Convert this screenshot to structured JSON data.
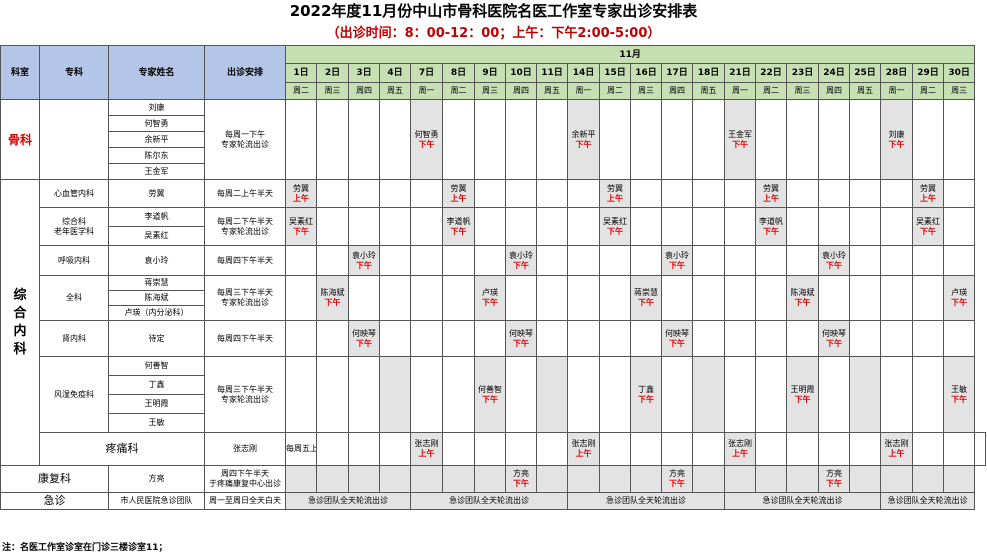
{
  "title": "2022年度11月份中山市骨科医院名医工作室专家出诊安排表",
  "subtitle": "（出诊时间：8：00-12：00；上午：下午2:00-5:00）",
  "header": {
    "dept": "科室",
    "specialty": "专科",
    "experts": "专家姓名",
    "schedule": "出诊安排",
    "month": "11月"
  },
  "days": [
    "1日",
    "2日",
    "3日",
    "4日",
    "7日",
    "8日",
    "9日",
    "10日",
    "11日",
    "14日",
    "15日",
    "16日",
    "17日",
    "18日",
    "21日",
    "22日",
    "23日",
    "24日",
    "25日",
    "28日",
    "29日",
    "30日"
  ],
  "weekdays": [
    "周二",
    "周三",
    "周四",
    "周五",
    "周一",
    "周二",
    "周三",
    "周四",
    "周五",
    "周一",
    "周二",
    "周三",
    "周四",
    "周五",
    "周一",
    "周二",
    "周三",
    "周四",
    "周五",
    "周一",
    "周二",
    "周三"
  ],
  "slot_pm": "下午",
  "slot_am": "上午",
  "ortho": {
    "dept": "骨科",
    "experts": [
      "刘康",
      "何智勇",
      "余新平",
      "陈尔东",
      "王金军"
    ],
    "schedule": [
      "每周一下午",
      "专家轮流出诊"
    ],
    "cells": [
      "何智勇",
      "余新平",
      "王金军",
      "刘康"
    ]
  },
  "internal": {
    "dept": "综合内科",
    "cardio": {
      "specialty": "心血管内科",
      "expert": "劳翼",
      "schedule": "每周二上午半天",
      "cell": "劳翼"
    },
    "geri": {
      "specialty": [
        "综合科",
        "老年医学科"
      ],
      "experts": [
        "李道帆",
        "吴素红"
      ],
      "schedule": [
        "每周二下午半天",
        "专家轮流出诊"
      ],
      "cells": [
        "吴素红",
        "李道帆",
        "吴素红",
        "李道帆",
        "吴素红"
      ]
    },
    "resp": {
      "specialty": "呼吸内科",
      "expert": "袁小玲",
      "schedule": "每周四下午半天",
      "cell": "袁小玲"
    },
    "general": {
      "specialty": "全科",
      "experts": [
        "蒋崇慧",
        "陈海斌",
        "卢瑛（内分泌科）"
      ],
      "schedule": [
        "每周三下午半天",
        "专家轮流出诊"
      ],
      "cells": [
        "陈海斌",
        "卢瑛",
        "蒋崇慧",
        "陈海斌",
        "卢瑛"
      ]
    },
    "nephro": {
      "specialty": "肾内科",
      "expert": "待定",
      "schedule": "每周四下午半天",
      "cell": "何映琴"
    },
    "rheum": {
      "specialty": "风湿免疫科",
      "experts": [
        "何善智",
        "丁鑫",
        "王明霞",
        "王敏"
      ],
      "schedule": [
        "每周三下午半天",
        "专家轮流出诊"
      ],
      "cells": [
        "何善智",
        "丁鑫",
        "王明霞",
        "王敏"
      ]
    }
  },
  "pain": {
    "dept": "疼痛科",
    "expert": "张志刚",
    "schedule": "每周五上午半天",
    "cell": "张志刚"
  },
  "rehab": {
    "dept": "康复科",
    "expert": "方亮",
    "schedule": [
      "周四下午半天",
      "于疼痛康复中心出诊"
    ],
    "cell": "方亮"
  },
  "emergency": {
    "dept": "急诊",
    "expert": "市人民医院急诊团队",
    "schedule": "周一至周日全天白天",
    "cell": "急诊团队全天轮流出诊"
  },
  "footnote": "注：名医工作室诊室在门诊三楼诊室11；"
}
